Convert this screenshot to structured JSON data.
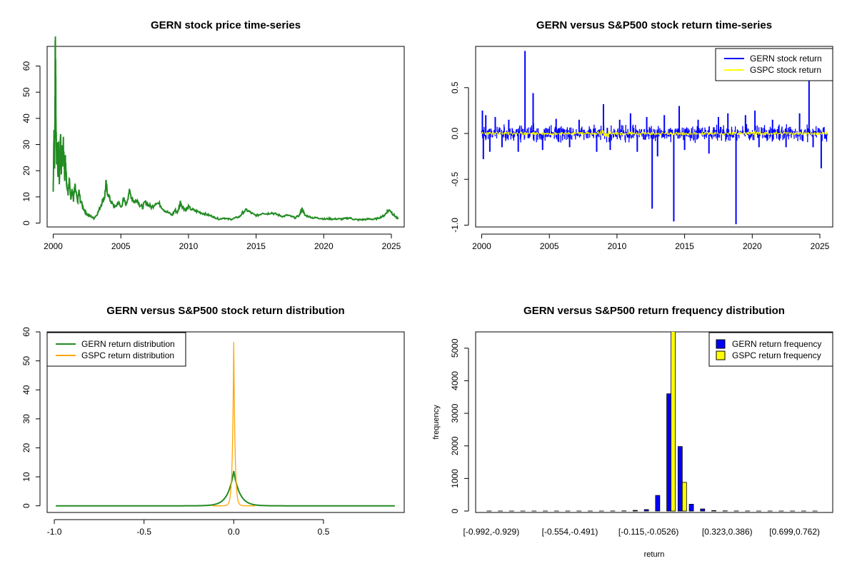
{
  "chart_data": [
    {
      "type": "line",
      "title": "GERN stock price time-series",
      "xlabel": "",
      "ylabel": "",
      "xlim": [
        1999.55,
        2025.95
      ],
      "ylim": [
        -1.5,
        67.5
      ],
      "x_ticks": [
        "2000",
        "2005",
        "2010",
        "2015",
        "2020",
        "2025"
      ],
      "y_ticks": [
        "0",
        "10",
        "20",
        "30",
        "40",
        "50",
        "60"
      ],
      "color": "#228B22",
      "series": [
        {
          "x": [
            2000.0,
            2000.05,
            2000.1,
            2000.13,
            2000.15,
            2000.18,
            2000.2,
            2000.25,
            2000.3,
            2000.35,
            2000.4,
            2000.45,
            2000.5,
            2000.55,
            2000.6,
            2000.65,
            2000.7,
            2000.75,
            2000.8,
            2000.85,
            2000.9,
            2000.95,
            2001.0,
            2001.1,
            2001.2,
            2001.3,
            2001.4,
            2001.5,
            2001.6,
            2001.7,
            2001.8,
            2001.9,
            2002.0,
            2002.2,
            2002.4,
            2002.6,
            2002.8,
            2003.0,
            2003.2,
            2003.4,
            2003.6,
            2003.8,
            2003.9,
            2004.0,
            2004.2,
            2004.4,
            2004.6,
            2004.8,
            2005.0,
            2005.2,
            2005.4,
            2005.6,
            2005.8,
            2006.0,
            2006.2,
            2006.4,
            2006.6,
            2006.8,
            2007.0,
            2007.3,
            2007.6,
            2007.9,
            2008.2,
            2008.5,
            2008.8,
            2009.0,
            2009.2,
            2009.4,
            2009.6,
            2009.8,
            2010.0,
            2010.3,
            2010.6,
            2010.9,
            2011.2,
            2011.5,
            2011.8,
            2012.0,
            2012.3,
            2012.6,
            2012.9,
            2013.2,
            2013.5,
            2013.8,
            2014.0,
            2014.3,
            2014.6,
            2014.9,
            2015.2,
            2015.5,
            2015.8,
            2016.1,
            2016.4,
            2016.7,
            2017.0,
            2017.3,
            2017.6,
            2017.9,
            2018.2,
            2018.4,
            2018.6,
            2018.9,
            2019.2,
            2019.5,
            2019.8,
            2020.1,
            2020.4,
            2020.7,
            2021.0,
            2021.3,
            2021.6,
            2021.9,
            2022.2,
            2022.5,
            2022.8,
            2023.1,
            2023.4,
            2023.7,
            2024.0,
            2024.3,
            2024.5,
            2024.7,
            2024.9,
            2025.1,
            2025.3,
            2025.5
          ],
          "y": [
            12,
            35,
            20,
            45,
            66,
            60,
            40,
            25,
            30,
            18,
            28,
            15,
            24,
            32,
            20,
            28,
            22,
            30,
            24,
            18,
            26,
            20,
            15,
            12,
            16,
            10,
            13,
            9,
            14,
            11,
            8,
            12,
            9,
            6,
            4,
            3,
            2.5,
            1.8,
            3,
            5,
            8,
            10,
            15,
            12,
            9,
            7,
            6,
            8,
            6,
            9,
            7,
            12,
            10,
            8,
            9,
            7,
            6,
            8,
            7,
            6,
            8,
            7,
            5,
            4,
            3,
            5,
            4,
            8,
            6,
            5,
            6,
            5,
            4.5,
            4,
            3.5,
            3,
            2.5,
            2,
            1.5,
            2,
            1.5,
            1.5,
            2,
            2.5,
            4,
            5,
            4,
            3,
            3,
            4,
            3.5,
            4,
            3.5,
            3,
            2.5,
            3,
            2.5,
            2,
            3,
            5.5,
            3,
            2.5,
            2,
            2,
            1.8,
            1.5,
            1.7,
            1.5,
            1.6,
            1.5,
            1.7,
            2,
            1.5,
            1.2,
            1.3,
            1.4,
            1.6,
            1.4,
            1.8,
            2.5,
            3,
            4.5,
            5,
            3.5,
            2.5,
            1.5
          ]
        }
      ]
    },
    {
      "type": "line",
      "title": "GERN versus S&P500 stock return time-series",
      "xlabel": "",
      "ylabel": "",
      "xlim": [
        1999.55,
        2025.95
      ],
      "ylim": [
        -1.02,
        0.95
      ],
      "x_ticks": [
        "2000",
        "2005",
        "2010",
        "2015",
        "2020",
        "2025"
      ],
      "y_ticks": [
        "-1.0",
        "-0.5",
        "0.0",
        "0.5"
      ],
      "legend": "top-right",
      "spikes": [
        {
          "x": 2000.05,
          "y": 0.25
        },
        {
          "x": 2000.12,
          "y": -0.28
        },
        {
          "x": 2000.3,
          "y": 0.2
        },
        {
          "x": 2000.6,
          "y": -0.2
        },
        {
          "x": 2001.0,
          "y": 0.18
        },
        {
          "x": 2001.5,
          "y": -0.15
        },
        {
          "x": 2002.0,
          "y": 0.15
        },
        {
          "x": 2002.7,
          "y": -0.2
        },
        {
          "x": 2003.2,
          "y": 0.9
        },
        {
          "x": 2003.8,
          "y": 0.44
        },
        {
          "x": 2004.5,
          "y": -0.18
        },
        {
          "x": 2005.5,
          "y": 0.16
        },
        {
          "x": 2006.5,
          "y": -0.15
        },
        {
          "x": 2007.2,
          "y": 0.15
        },
        {
          "x": 2008.5,
          "y": -0.2
        },
        {
          "x": 2009.0,
          "y": 0.32
        },
        {
          "x": 2009.5,
          "y": -0.18
        },
        {
          "x": 2010.2,
          "y": 0.15
        },
        {
          "x": 2011.0,
          "y": 0.22
        },
        {
          "x": 2011.5,
          "y": -0.2
        },
        {
          "x": 2012.2,
          "y": 0.18
        },
        {
          "x": 2012.6,
          "y": -0.82
        },
        {
          "x": 2013.0,
          "y": -0.25
        },
        {
          "x": 2013.5,
          "y": 0.2
        },
        {
          "x": 2014.2,
          "y": -0.96
        },
        {
          "x": 2014.6,
          "y": 0.3
        },
        {
          "x": 2015.0,
          "y": -0.18
        },
        {
          "x": 2016.0,
          "y": 0.15
        },
        {
          "x": 2016.8,
          "y": -0.22
        },
        {
          "x": 2017.5,
          "y": 0.18
        },
        {
          "x": 2018.2,
          "y": 0.22
        },
        {
          "x": 2018.8,
          "y": -0.99
        },
        {
          "x": 2019.5,
          "y": 0.2
        },
        {
          "x": 2020.2,
          "y": 0.25
        },
        {
          "x": 2020.5,
          "y": -0.15
        },
        {
          "x": 2021.5,
          "y": 0.15
        },
        {
          "x": 2022.5,
          "y": -0.15
        },
        {
          "x": 2023.5,
          "y": 0.22
        },
        {
          "x": 2024.2,
          "y": 0.6
        },
        {
          "x": 2024.5,
          "y": -0.15
        },
        {
          "x": 2025.1,
          "y": -0.38
        }
      ],
      "series": [
        {
          "name": "GERN stock return",
          "color": "#0000FF",
          "band": 0.07
        },
        {
          "name": "GSPC stock return",
          "color": "#FFFF00",
          "band": 0.02
        }
      ]
    },
    {
      "type": "line",
      "title": "GERN versus S&P500 stock return distribution",
      "xlabel": "",
      "ylabel": "",
      "xlim": [
        -1.04,
        0.95
      ],
      "ylim": [
        -2.3,
        60
      ],
      "x_ticks": [
        "-1.0",
        "-0.5",
        "0.0",
        "0.5"
      ],
      "y_ticks": [
        "0",
        "10",
        "20",
        "30",
        "40",
        "50",
        "60"
      ],
      "legend": "top-left",
      "series": [
        {
          "name": "GERN return distribution",
          "color": "#228B22",
          "kind": "density",
          "mu": 0.0,
          "peak": 12,
          "sigma": 0.033,
          "range": [
            -0.992,
            0.9
          ]
        },
        {
          "name": "GSPC return distribution",
          "color": "#FFA500",
          "kind": "density",
          "mu": 0.0,
          "peak": 56.5,
          "sigma": 0.007,
          "range": [
            -0.12,
            0.12
          ]
        }
      ]
    },
    {
      "type": "bar",
      "title": "GERN versus S&P500 return frequency distribution",
      "xlabel": "return",
      "ylabel": "frequency",
      "ylim": [
        0,
        5500
      ],
      "y_ticks": [
        "0",
        "1000",
        "2000",
        "3000",
        "4000",
        "5000"
      ],
      "x_tick_labels": [
        "[-0.992,-0.929)",
        "[-0.554,-0.491)",
        "[-0.115,-0.0526)",
        "[0.323,0.386)",
        "[0.699,0.762)"
      ],
      "x_tick_bins": [
        0,
        7,
        14,
        21,
        27
      ],
      "legend": "top-right",
      "series": [
        {
          "name": "GERN return frequency",
          "color": "#0000FF",
          "values": [
            2,
            1,
            1,
            1,
            1,
            1,
            1,
            1,
            1,
            1,
            1,
            2,
            5,
            20,
            45,
            480,
            3600,
            1980,
            210,
            65,
            15,
            6,
            3,
            2,
            1,
            1,
            1,
            1,
            1,
            1
          ]
        },
        {
          "name": "GSPC return frequency",
          "color": "#FFFF00",
          "values": [
            0,
            0,
            0,
            0,
            0,
            0,
            0,
            0,
            0,
            0,
            0,
            0,
            0,
            0,
            0,
            0,
            5550,
            880,
            0,
            0,
            0,
            0,
            0,
            0,
            0,
            0,
            0,
            0,
            0,
            0
          ]
        }
      ]
    }
  ]
}
